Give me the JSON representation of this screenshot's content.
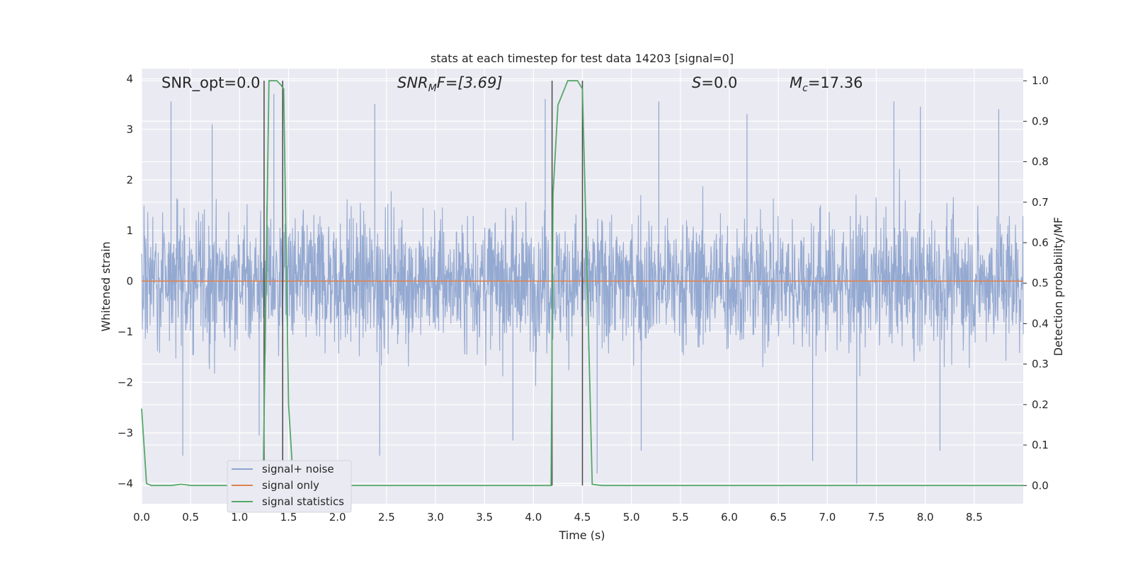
{
  "chart_data": {
    "type": "line",
    "title": "stats at each timestep for test data 14203 [signal=0]",
    "xlabel": "Time (s)",
    "ylabel": "Whitened strain",
    "ylabel_right": "Detection probability/MF",
    "xlim": [
      0,
      9
    ],
    "ylim": [
      -4.4,
      4.2
    ],
    "ylim_right": [
      -0.045,
      1.03
    ],
    "x_ticks": [
      0.0,
      0.5,
      1.0,
      1.5,
      2.0,
      2.5,
      3.0,
      3.5,
      4.0,
      4.5,
      5.0,
      5.5,
      6.0,
      6.5,
      7.0,
      7.5,
      8.0,
      8.5
    ],
    "y_ticks": [
      4,
      3,
      2,
      1,
      0,
      -1,
      -2,
      -3,
      -4
    ],
    "y_ticks_right": [
      1.0,
      0.9,
      0.8,
      0.7,
      0.6,
      0.5,
      0.4,
      0.3,
      0.2,
      0.1,
      0.0
    ],
    "grid": true,
    "legend_position": "bottom-left",
    "annotations": {
      "snr_opt": "SNR_opt=0.0",
      "snr_mf_main": "SNR",
      "snr_mf_sub": "M",
      "snr_mf_rest": "F=[3.69]",
      "s_main": "S",
      "s_rest": "=0.0",
      "mc_main": "M",
      "mc_sub": "c",
      "mc_rest": "=17.36"
    },
    "series": [
      {
        "name": "signal+ noise",
        "color": "#8fa5cf",
        "description_envelope": {
          "typical_upper": 2.2,
          "typical_lower": -2.2,
          "peaks_upper": [
            [
              0.3,
              3.55
            ],
            [
              0.72,
              3.1
            ],
            [
              1.35,
              3.7
            ],
            [
              2.38,
              3.5
            ],
            [
              4.12,
              3.6
            ],
            [
              5.28,
              3.55
            ],
            [
              6.18,
              3.3
            ],
            [
              7.68,
              3.55
            ],
            [
              7.95,
              3.45
            ],
            [
              8.75,
              3.4
            ]
          ],
          "peaks_lower": [
            [
              0.42,
              -3.45
            ],
            [
              1.2,
              -3.05
            ],
            [
              2.43,
              -3.45
            ],
            [
              3.79,
              -3.15
            ],
            [
              4.65,
              -3.8
            ],
            [
              5.1,
              -3.35
            ],
            [
              6.85,
              -3.55
            ],
            [
              7.3,
              -4.0
            ],
            [
              8.15,
              -3.35
            ]
          ]
        }
      },
      {
        "name": "signal only",
        "color": "#dd8452",
        "x": [
          0,
          9
        ],
        "y": [
          0,
          0
        ]
      },
      {
        "name": "signal statistics",
        "color": "#55a868",
        "axis": "right",
        "x": [
          0.0,
          0.05,
          0.1,
          0.2,
          0.3,
          0.4,
          0.45,
          0.5,
          1.0,
          1.24,
          1.3,
          1.38,
          1.42,
          1.45,
          1.5,
          1.55,
          4.0,
          4.18,
          4.2,
          4.25,
          4.35,
          4.45,
          4.5,
          4.55,
          4.6,
          4.7,
          9.0
        ],
        "y": [
          0.19,
          0.005,
          0.0,
          0.0,
          0.0,
          0.003,
          0.002,
          0.0,
          0.0,
          0.0,
          1.0,
          1.0,
          0.99,
          0.98,
          0.2,
          0.0,
          0.0,
          0.0,
          0.72,
          0.94,
          1.0,
          1.0,
          0.98,
          0.5,
          0.003,
          0.0,
          0.0
        ]
      }
    ],
    "vertical_markers": [
      1.25,
      1.44,
      4.19,
      4.5
    ]
  }
}
